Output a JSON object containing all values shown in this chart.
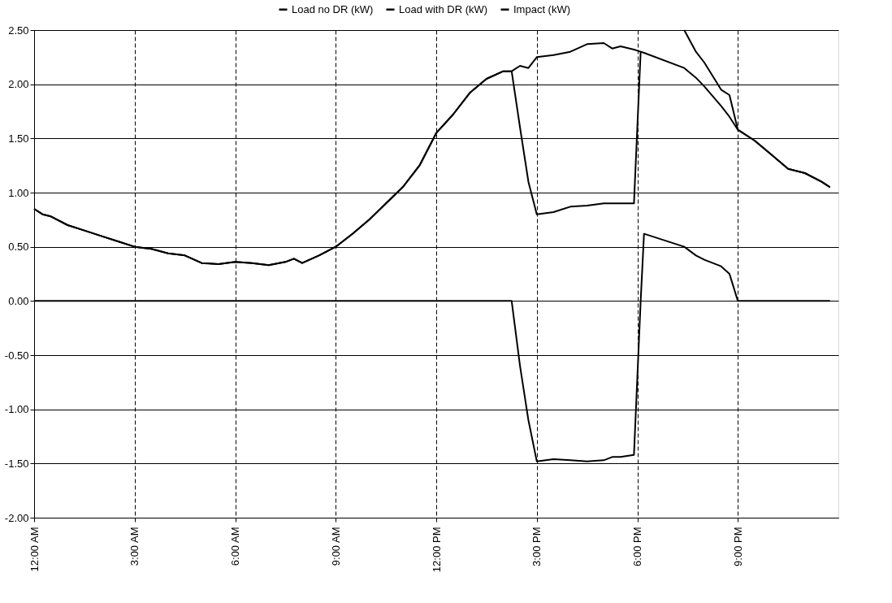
{
  "chart_data": {
    "type": "line",
    "x": [
      0,
      0.25,
      0.5,
      1,
      1.5,
      2,
      2.5,
      3,
      3.5,
      4,
      4.5,
      5,
      5.5,
      6,
      6.5,
      7,
      7.5,
      7.75,
      8,
      8.5,
      9,
      9.5,
      10,
      10.5,
      11,
      11.5,
      12,
      12.5,
      13,
      13.5,
      14,
      14.25,
      14.5,
      14.75,
      15,
      15.5,
      16,
      16.5,
      17,
      17.25,
      17.5,
      17.9,
      18.1,
      18.2,
      19.4,
      19.75,
      20,
      20.5,
      20.75,
      21,
      21.5,
      22,
      22.5,
      23,
      23.5,
      23.75
    ],
    "series": [
      {
        "name": "Load no DR (kW)",
        "color": "#000000",
        "values": [
          0.85,
          0.8,
          0.78,
          0.7,
          0.65,
          0.6,
          0.55,
          0.5,
          0.48,
          0.44,
          0.42,
          0.35,
          0.34,
          0.36,
          0.35,
          0.33,
          0.36,
          0.39,
          0.35,
          0.42,
          0.5,
          0.62,
          0.75,
          0.9,
          1.05,
          1.25,
          1.55,
          1.72,
          1.92,
          2.05,
          2.12,
          2.12,
          2.17,
          2.15,
          2.25,
          2.27,
          2.3,
          2.37,
          2.38,
          2.33,
          2.35,
          2.32,
          2.3,
          2.29,
          2.15,
          2.06,
          1.98,
          1.8,
          1.7,
          1.58,
          1.48,
          1.35,
          1.22,
          1.18,
          1.1,
          1.05
        ]
      },
      {
        "name": "Load with DR (kW)",
        "color": "#000000",
        "values": [
          0.85,
          0.8,
          0.78,
          0.7,
          0.65,
          0.6,
          0.55,
          0.5,
          0.48,
          0.44,
          0.42,
          0.35,
          0.34,
          0.36,
          0.35,
          0.33,
          0.36,
          0.39,
          0.35,
          0.42,
          0.5,
          0.62,
          0.75,
          0.9,
          1.05,
          1.25,
          1.55,
          1.72,
          1.92,
          2.05,
          2.12,
          2.12,
          1.6,
          1.1,
          0.8,
          0.82,
          0.87,
          0.88,
          0.9,
          0.9,
          0.9,
          0.9,
          2.3,
          null,
          2.5,
          2.3,
          2.2,
          1.95,
          1.9,
          1.58,
          1.48,
          1.35,
          1.22,
          1.18,
          1.1,
          1.05
        ]
      },
      {
        "name": "Impact (kW)",
        "color": "#000000",
        "values": [
          0,
          0,
          0,
          0,
          0,
          0,
          0,
          0,
          0,
          0,
          0,
          0,
          0,
          0,
          0,
          0,
          0,
          0,
          0,
          0,
          0,
          0,
          0,
          0,
          0,
          0,
          0,
          0,
          0,
          0,
          0,
          0,
          -0.6,
          -1.1,
          -1.48,
          -1.46,
          -1.47,
          -1.48,
          -1.47,
          -1.44,
          -1.44,
          -1.42,
          0.0,
          0.62,
          0.5,
          0.42,
          0.38,
          0.32,
          0.25,
          0,
          0,
          0,
          0,
          0,
          0,
          0
        ]
      }
    ],
    "xlim": [
      0,
      24
    ],
    "xticks": [
      {
        "value": 0,
        "label": "12:00 AM"
      },
      {
        "value": 3,
        "label": "3:00 AM"
      },
      {
        "value": 6,
        "label": "6:00 AM"
      },
      {
        "value": 9,
        "label": "9:00 AM"
      },
      {
        "value": 12,
        "label": "12:00 PM"
      },
      {
        "value": 15,
        "label": "3:00 PM"
      },
      {
        "value": 18,
        "label": "6:00 PM"
      },
      {
        "value": 21,
        "label": "9:00 PM"
      }
    ],
    "ylim": [
      -2,
      2.5
    ],
    "yticks": [
      {
        "value": -2,
        "label": "-2.00"
      },
      {
        "value": -1.5,
        "label": "-1.50"
      },
      {
        "value": -1,
        "label": "-1.00"
      },
      {
        "value": -0.5,
        "label": "-0.50"
      },
      {
        "value": 0,
        "label": "0.00"
      },
      {
        "value": 0.5,
        "label": "0.50"
      },
      {
        "value": 1,
        "label": "1.00"
      },
      {
        "value": 1.5,
        "label": "1.50"
      },
      {
        "value": 2,
        "label": "2.00"
      },
      {
        "value": 2.5,
        "label": "2.50"
      }
    ],
    "grid": true,
    "legend": "top",
    "marker": "none",
    "line_style": "solid"
  }
}
